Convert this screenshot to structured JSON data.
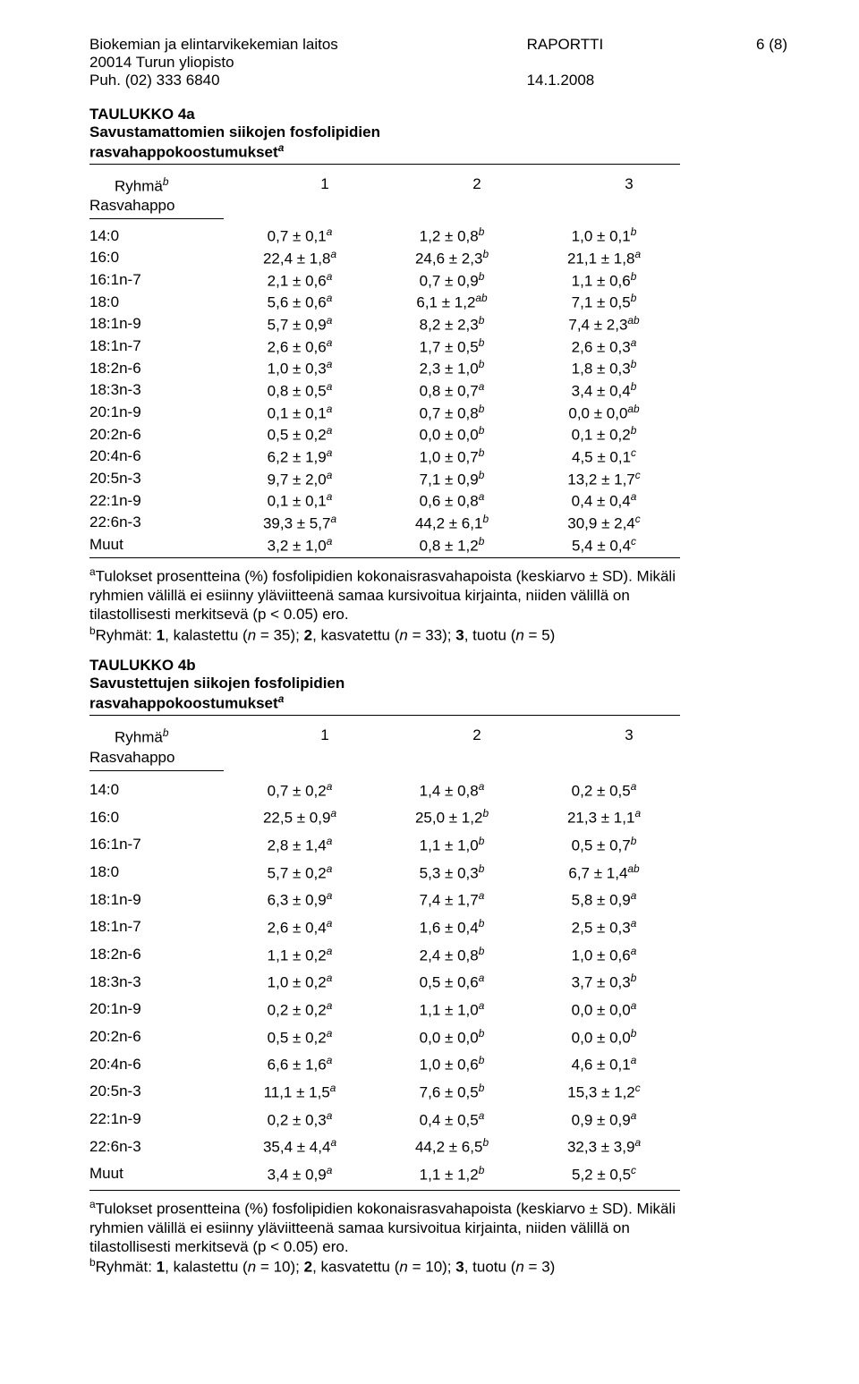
{
  "header": {
    "org1": "Biokemian ja elintarvikekemian laitos",
    "org2": "20014 Turun yliopisto",
    "org3": "Puh. (02) 333 6840",
    "doc": "RAPORTTI",
    "date": "14.1.2008",
    "page": "6 (8)"
  },
  "table_a": {
    "title1": "TAULUKKO 4a",
    "title2": "Savustamattomien siikojen fosfolipidien",
    "title3": "rasvahappokoostumukset",
    "group_label": "Ryhmä",
    "groups": [
      "1",
      "2",
      "3"
    ],
    "rasvahappo_label": "Rasvahappo",
    "rows": [
      {
        "n": "14:0",
        "v": [
          "0,7 ± 0,1",
          "1,2 ± 0,8",
          "1,0 ± 0,1"
        ],
        "s": [
          "a",
          "b",
          "b"
        ]
      },
      {
        "n": "16:0",
        "v": [
          "22,4 ± 1,8",
          "24,6 ± 2,3",
          "21,1 ± 1,8"
        ],
        "s": [
          "a",
          "b",
          "a"
        ]
      },
      {
        "n": "16:1n-7",
        "v": [
          "2,1 ± 0,6",
          "0,7 ± 0,9",
          "1,1 ± 0,6"
        ],
        "s": [
          "a",
          "b",
          "b"
        ]
      },
      {
        "n": "18:0",
        "v": [
          "5,6 ± 0,6",
          "6,1 ± 1,2",
          "7,1 ± 0,5"
        ],
        "s": [
          "a",
          "ab",
          "b"
        ]
      },
      {
        "n": "18:1n-9",
        "v": [
          "5,7 ± 0,9",
          "8,2 ± 2,3",
          "7,4 ± 2,3"
        ],
        "s": [
          "a",
          "b",
          "ab"
        ]
      },
      {
        "n": "18:1n-7",
        "v": [
          "2,6 ± 0,6",
          "1,7 ± 0,5",
          "2,6 ± 0,3"
        ],
        "s": [
          "a",
          "b",
          "a"
        ]
      },
      {
        "n": "18:2n-6",
        "v": [
          "1,0 ± 0,3",
          "2,3 ± 1,0",
          "1,8 ± 0,3"
        ],
        "s": [
          "a",
          "b",
          "b"
        ]
      },
      {
        "n": "18:3n-3",
        "v": [
          "0,8 ± 0,5",
          "0,8 ± 0,7",
          "3,4 ± 0,4"
        ],
        "s": [
          "a",
          "a",
          "b"
        ]
      },
      {
        "n": "20:1n-9",
        "v": [
          "0,1 ± 0,1",
          "0,7 ± 0,8",
          "0,0 ± 0,0"
        ],
        "s": [
          "a",
          "b",
          "ab"
        ]
      },
      {
        "n": "20:2n-6",
        "v": [
          "0,5 ± 0,2",
          "0,0 ± 0,0",
          "0,1 ± 0,2"
        ],
        "s": [
          "a",
          "b",
          "b"
        ]
      },
      {
        "n": "20:4n-6",
        "v": [
          "6,2 ± 1,9",
          "1,0 ± 0,7",
          "4,5 ± 0,1"
        ],
        "s": [
          "a",
          "b",
          "c"
        ]
      },
      {
        "n": "20:5n-3",
        "v": [
          "9,7 ± 2,0",
          "7,1 ± 0,9",
          "13,2 ± 1,7"
        ],
        "s": [
          "a",
          "b",
          "c"
        ]
      },
      {
        "n": "22:1n-9",
        "v": [
          "0,1 ± 0,1",
          "0,6 ± 0,8",
          "0,4 ± 0,4"
        ],
        "s": [
          "a",
          "a",
          "a"
        ]
      },
      {
        "n": "22:6n-3",
        "v": [
          "39,3 ± 5,7",
          "44,2 ± 6,1",
          "30,9 ± 2,4"
        ],
        "s": [
          "a",
          "b",
          "c"
        ]
      },
      {
        "n": "Muut",
        "v": [
          "3,2 ± 1,0",
          "0,8 ± 1,2",
          "5,4 ± 0,4"
        ],
        "s": [
          "a",
          "b",
          "c"
        ]
      }
    ],
    "footnote_a": "Tulokset prosentteina (%) fosfolipidien kokonaisrasvahapoista (keskiarvo ± SD). Mikäli ryhmien välillä ei esiinny yläviitteenä samaa kursivoitua kirjainta, niiden välillä on tilastollisesti merkitsevä (p < 0.05) ero.",
    "footnote_b_pre": "Ryhmät: ",
    "footnote_b_1": "1",
    "footnote_b_1t": ", kalastettu (",
    "footnote_b_1n": "n",
    "footnote_b_1e": " = 35); ",
    "footnote_b_2": "2",
    "footnote_b_2t": ", kasvatettu (",
    "footnote_b_2n": "n",
    "footnote_b_2e": " = 33); ",
    "footnote_b_3": "3",
    "footnote_b_3t": ", tuotu (",
    "footnote_b_3n": "n",
    "footnote_b_3e": " = 5)"
  },
  "table_b": {
    "title1": "TAULUKKO 4b",
    "title2": "Savustettujen siikojen fosfolipidien",
    "title3": "rasvahappokoostumukset",
    "group_label": "Ryhmä",
    "groups": [
      "1",
      "2",
      "3"
    ],
    "rasvahappo_label": "Rasvahappo",
    "rows": [
      {
        "n": "14:0",
        "v": [
          "0,7 ± 0,2",
          "1,4 ± 0,8",
          "0,2 ± 0,5"
        ],
        "s": [
          "a",
          "a",
          "a"
        ]
      },
      {
        "n": "16:0",
        "v": [
          "22,5 ± 0,9",
          "25,0 ± 1,2",
          "21,3 ± 1,1"
        ],
        "s": [
          "a",
          "b",
          "a"
        ]
      },
      {
        "n": "16:1n-7",
        "v": [
          "2,8 ± 1,4",
          "1,1 ± 1,0",
          "0,5 ± 0,7"
        ],
        "s": [
          "a",
          "b",
          "b"
        ]
      },
      {
        "n": "18:0",
        "v": [
          "5,7 ± 0,2",
          "5,3 ± 0,3",
          "6,7 ± 1,4"
        ],
        "s": [
          "a",
          "b",
          "ab"
        ]
      },
      {
        "n": "18:1n-9",
        "v": [
          "6,3 ± 0,9",
          "7,4 ± 1,7",
          "5,8 ± 0,9"
        ],
        "s": [
          "a",
          "a",
          "a"
        ]
      },
      {
        "n": "18:1n-7",
        "v": [
          "2,6 ± 0,4",
          "1,6 ± 0,4",
          "2,5 ± 0,3"
        ],
        "s": [
          "a",
          "b",
          "a"
        ]
      },
      {
        "n": "18:2n-6",
        "v": [
          "1,1 ± 0,2",
          "2,4 ± 0,8",
          "1,0 ± 0,6"
        ],
        "s": [
          "a",
          "b",
          "a"
        ]
      },
      {
        "n": "18:3n-3",
        "v": [
          "1,0 ± 0,2",
          "0,5 ± 0,6",
          "3,7 ± 0,3"
        ],
        "s": [
          "a",
          "a",
          "b"
        ]
      },
      {
        "n": "20:1n-9",
        "v": [
          "0,2 ± 0,2",
          "1,1 ± 1,0",
          "0,0 ± 0,0"
        ],
        "s": [
          "a",
          "a",
          "a"
        ]
      },
      {
        "n": "20:2n-6",
        "v": [
          "0,5 ± 0,2",
          "0,0 ± 0,0",
          "0,0 ± 0,0"
        ],
        "s": [
          "a",
          "b",
          "b"
        ]
      },
      {
        "n": "20:4n-6",
        "v": [
          "6,6 ± 1,6",
          "1,0 ± 0,6",
          "4,6 ± 0,1"
        ],
        "s": [
          "a",
          "b",
          "a"
        ]
      },
      {
        "n": "20:5n-3",
        "v": [
          "11,1 ± 1,5",
          "7,6 ± 0,5",
          "15,3 ± 1,2"
        ],
        "s": [
          "a",
          "b",
          "c"
        ]
      },
      {
        "n": "22:1n-9",
        "v": [
          "0,2 ± 0,3",
          "0,4 ± 0,5",
          "0,9 ± 0,9"
        ],
        "s": [
          "a",
          "a",
          "a"
        ]
      },
      {
        "n": "22:6n-3",
        "v": [
          "35,4 ± 4,4",
          "44,2 ± 6,5",
          "32,3 ± 3,9"
        ],
        "s": [
          "a",
          "b",
          "a"
        ]
      },
      {
        "n": "Muut",
        "v": [
          "3,4 ± 0,9",
          "1,1 ± 1,2",
          "5,2 ± 0,5"
        ],
        "s": [
          "a",
          "b",
          "c"
        ]
      }
    ],
    "footnote_a": "Tulokset prosentteina (%) fosfolipidien kokonaisrasvahapoista (keskiarvo ± SD). Mikäli ryhmien välillä ei esiinny yläviitteenä samaa kursivoitua kirjainta, niiden välillä on tilastollisesti merkitsevä (p < 0.05) ero.",
    "footnote_b_pre": "Ryhmät: ",
    "footnote_b_1": "1",
    "footnote_b_1t": ", kalastettu (",
    "footnote_b_1n": "n",
    "footnote_b_1e": " = 10); ",
    "footnote_b_2": "2",
    "footnote_b_2t": ", kasvatettu (",
    "footnote_b_2n": "n",
    "footnote_b_2e": " = 10); ",
    "footnote_b_3": "3",
    "footnote_b_3t": ", tuotu (",
    "footnote_b_3n": "n",
    "footnote_b_3e": " = 3)"
  }
}
